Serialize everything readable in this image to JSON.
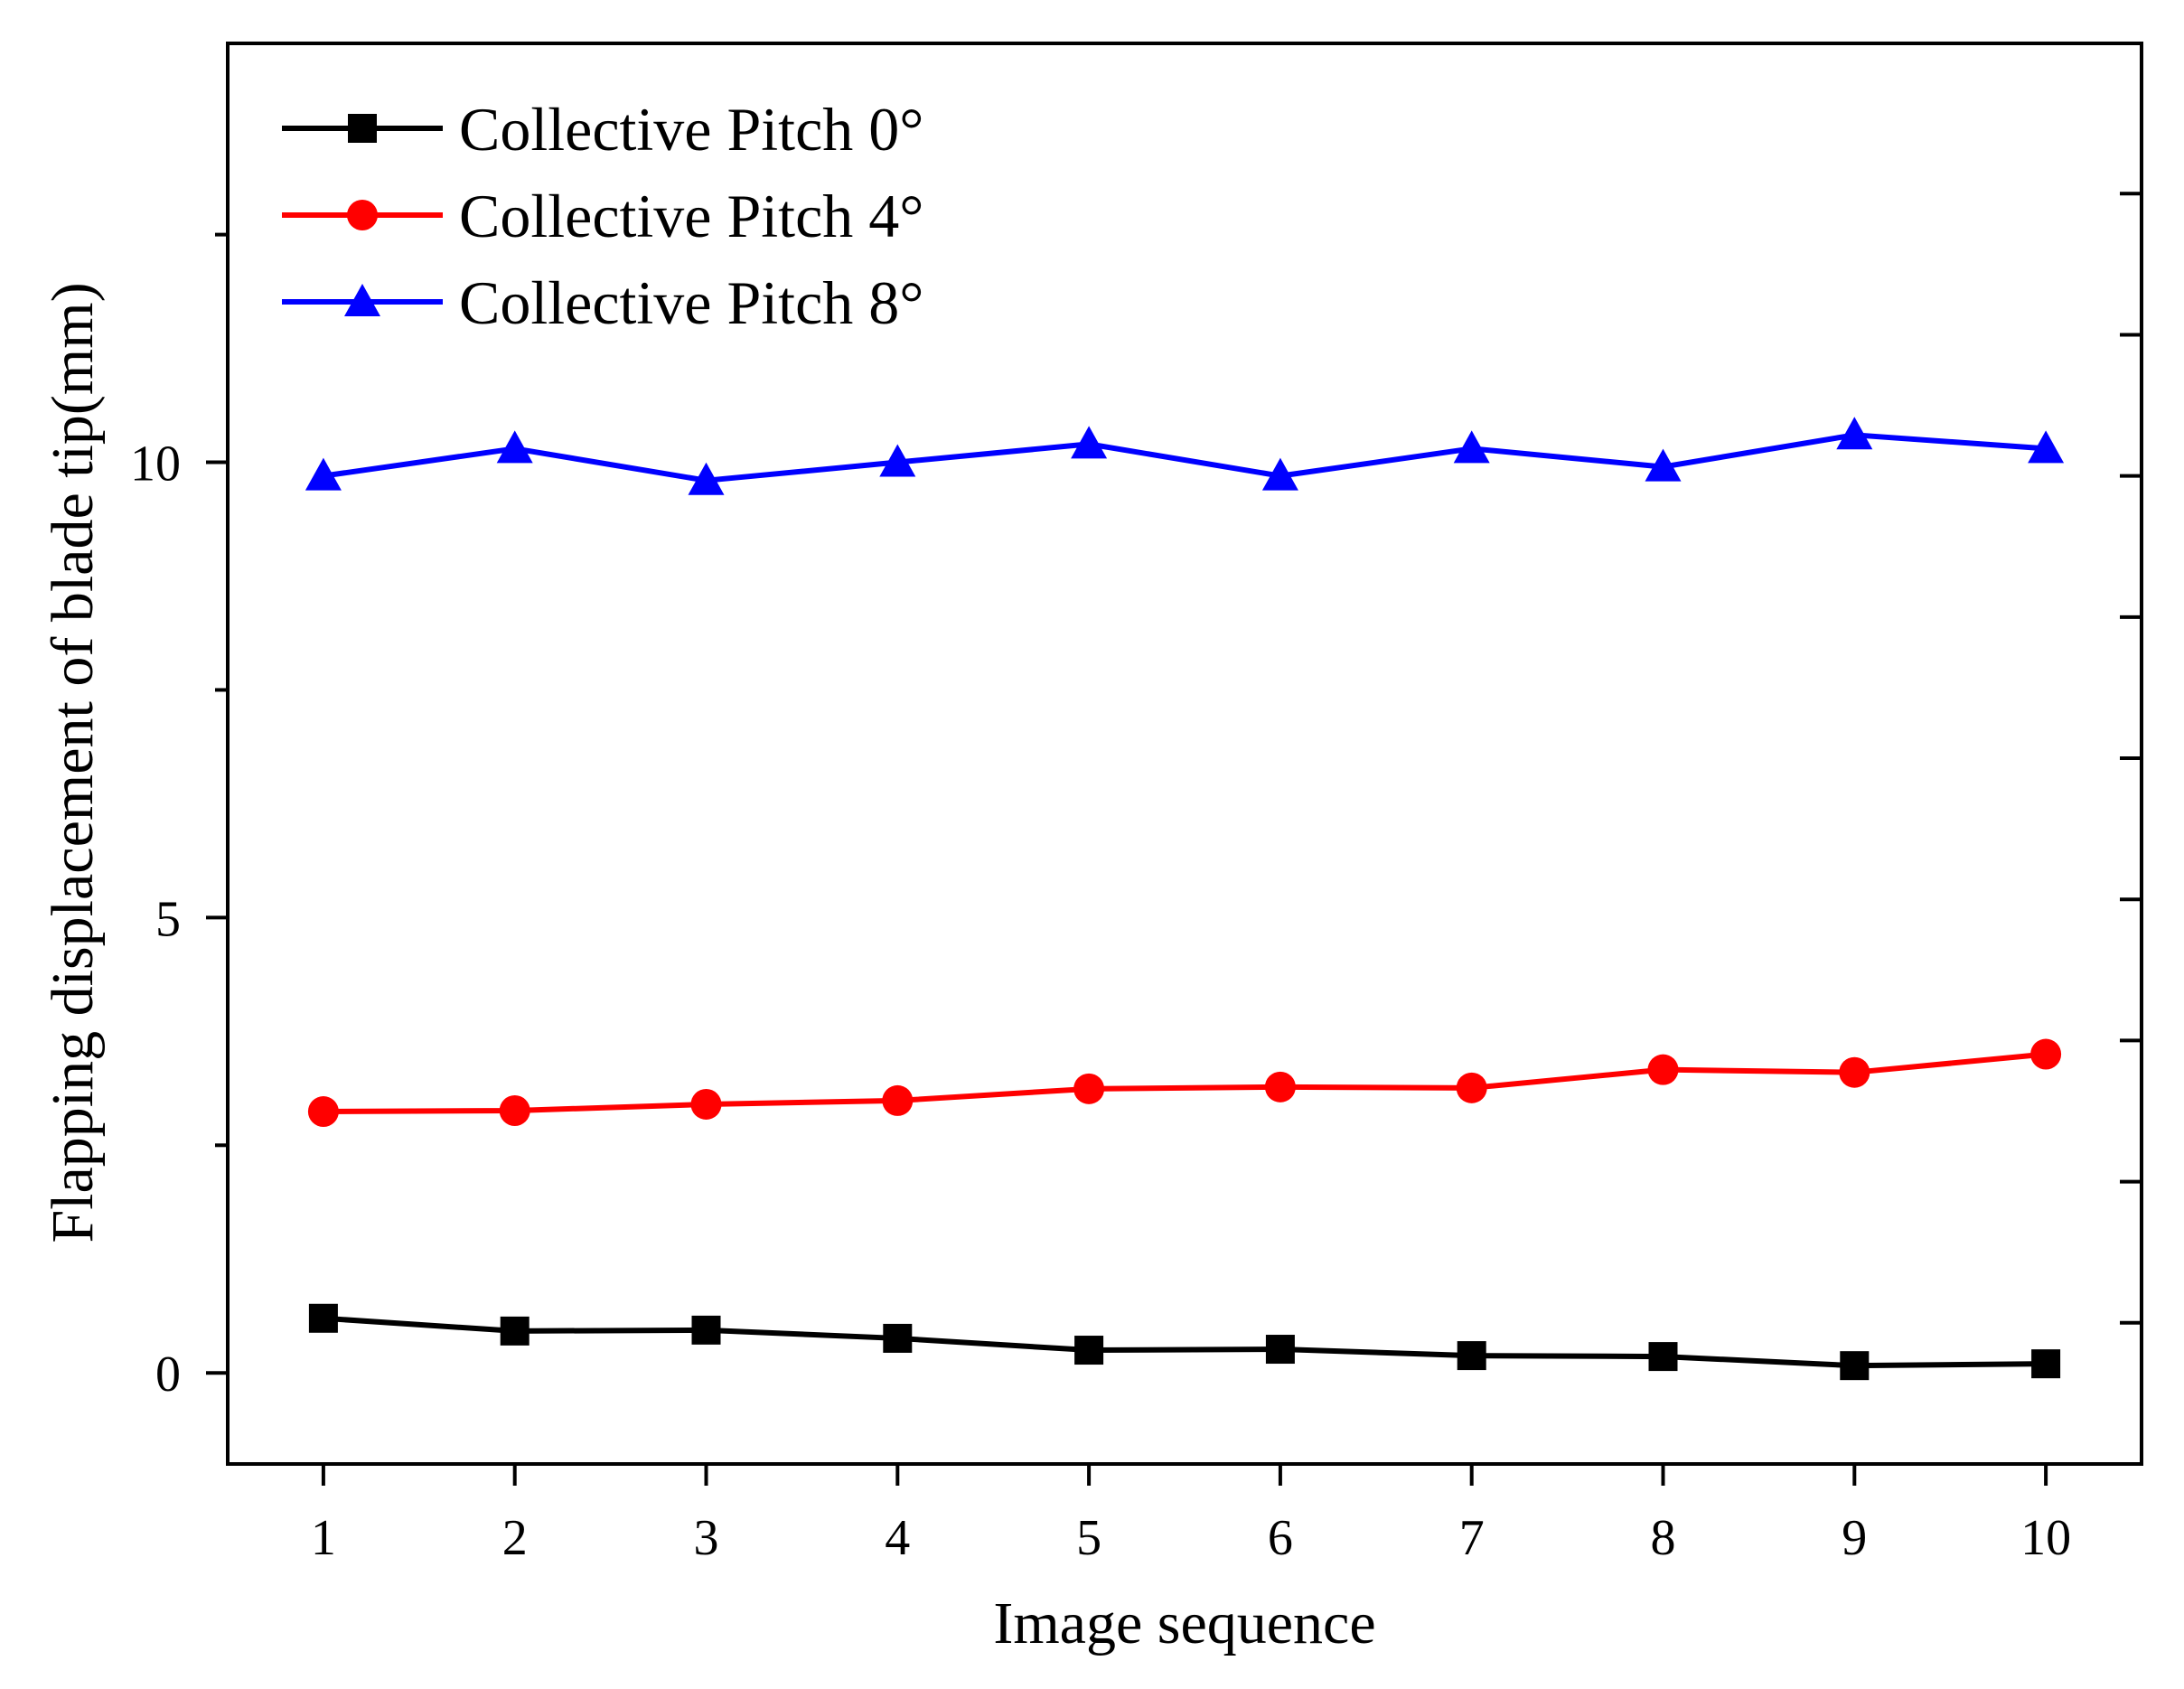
{
  "chart_data": {
    "type": "line",
    "title": "",
    "xlabel": "Image sequence",
    "ylabel": "Flapping displacement of blade tip(mm)",
    "x": [
      1,
      2,
      3,
      4,
      5,
      6,
      7,
      8,
      9,
      10
    ],
    "xlim": [
      0.5,
      10.5
    ],
    "ylim": [
      -1.0,
      14.6
    ],
    "xticks": [
      "1",
      "2",
      "3",
      "4",
      "5",
      "6",
      "7",
      "8",
      "9",
      "10"
    ],
    "yticks": [
      {
        "value": 0,
        "label": "0"
      },
      {
        "value": 5,
        "label": "5"
      },
      {
        "value": 10,
        "label": "10"
      }
    ],
    "y_minor_ticks": [
      2.5,
      7.5,
      12.5
    ],
    "right_ticks": [
      0.55,
      2.1,
      3.65,
      5.2,
      6.75,
      8.3,
      9.85,
      11.4,
      12.95
    ],
    "grid": false,
    "legend_position": "top-left",
    "series": [
      {
        "name": "Collective Pitch 0°",
        "color": "#000000",
        "marker": "square",
        "values": [
          0.6,
          0.46,
          0.47,
          0.38,
          0.25,
          0.26,
          0.19,
          0.18,
          0.08,
          0.1
        ]
      },
      {
        "name": "Collective Pitch 4°",
        "color": "#ff0000",
        "marker": "circle",
        "values": [
          2.87,
          2.88,
          2.95,
          2.99,
          3.12,
          3.14,
          3.13,
          3.33,
          3.3,
          3.5
        ]
      },
      {
        "name": "Collective Pitch 8°",
        "color": "#0000ff",
        "marker": "triangle",
        "values": [
          9.85,
          10.15,
          9.8,
          10.0,
          10.2,
          9.85,
          10.15,
          9.95,
          10.3,
          10.15
        ]
      }
    ]
  }
}
